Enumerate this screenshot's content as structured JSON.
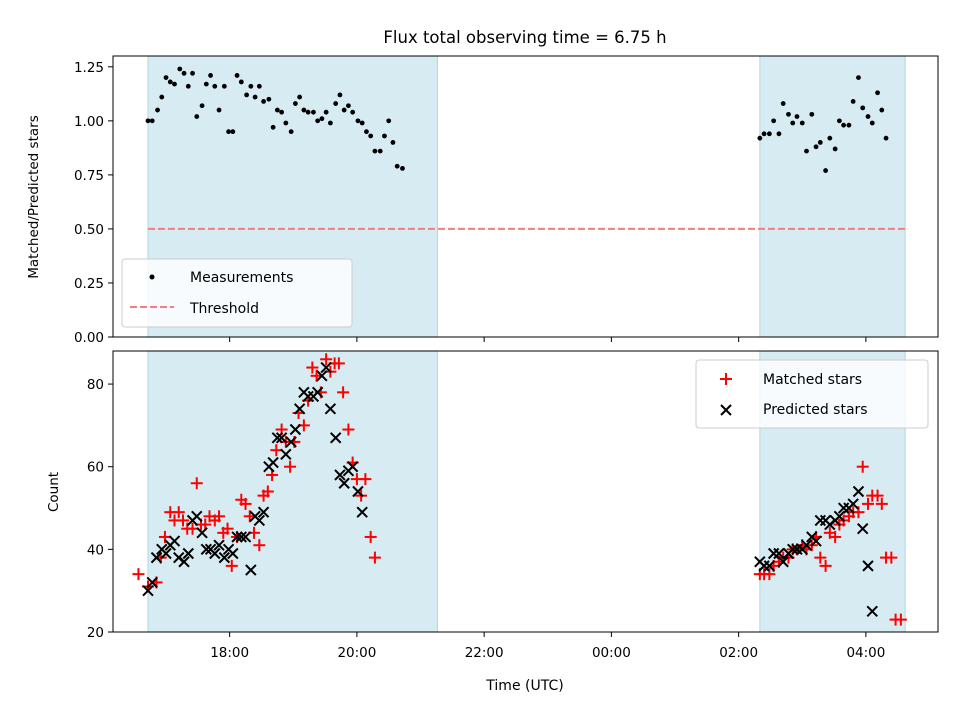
{
  "title": "Flux total observing time = 6.75 h",
  "colors": {
    "shade": "#add8e6",
    "measurements": "#000000",
    "threshold": "#f08080",
    "matched": "#ff0000",
    "predicted": "#000000"
  },
  "chart_data": [
    {
      "type": "scatter",
      "ylabel": "Matched/Predicted stars",
      "ylim": [
        0,
        1.3
      ],
      "yticks": [
        0.0,
        0.25,
        0.5,
        0.75,
        1.0,
        1.25
      ],
      "ytick_labels": [
        "0.00",
        "0.25",
        "0.50",
        "0.75",
        "1.00",
        "1.25"
      ],
      "legend": {
        "position": "lower-left",
        "entries": [
          "Measurements",
          "Threshold"
        ]
      },
      "shaded_spans": [
        [
          "16:43",
          "21:16"
        ],
        [
          "02:20",
          "04:37"
        ]
      ],
      "threshold": {
        "y": 0.5,
        "x": [
          "16:43",
          "04:37"
        ]
      },
      "series": [
        {
          "name": "Measurements",
          "x": [
            "16:43",
            "16:47",
            "16:52",
            "16:56",
            "17:00",
            "17:04",
            "17:08",
            "17:13",
            "17:17",
            "17:21",
            "17:25",
            "17:29",
            "17:34",
            "17:38",
            "17:42",
            "17:46",
            "17:50",
            "17:55",
            "17:59",
            "18:03",
            "18:07",
            "18:11",
            "18:16",
            "18:20",
            "18:24",
            "18:28",
            "18:32",
            "18:37",
            "18:41",
            "18:45",
            "18:49",
            "18:53",
            "18:58",
            "19:02",
            "19:06",
            "19:10",
            "19:14",
            "19:19",
            "19:23",
            "19:27",
            "19:31",
            "19:35",
            "19:40",
            "19:44",
            "19:48",
            "19:52",
            "19:56",
            "20:01",
            "20:05",
            "20:09",
            "20:13",
            "20:17",
            "20:22",
            "20:26",
            "20:30",
            "20:34",
            "20:38",
            "20:43",
            "20:47",
            "20:51",
            "20:55",
            "20:59",
            "21:04",
            "21:08",
            "21:12",
            "02:20",
            "02:24",
            "02:29",
            "02:33",
            "02:38",
            "02:42",
            "02:47",
            "02:51",
            "02:55",
            "03:00",
            "03:04",
            "03:09",
            "03:13",
            "03:17",
            "03:22",
            "03:26",
            "03:31",
            "03:35",
            "03:39",
            "03:44",
            "03:48",
            "03:53",
            "03:57",
            "04:02",
            "04:06",
            "04:11",
            "04:15",
            "04:19",
            "04:24",
            "04:28",
            "04:33",
            "04:37"
          ],
          "y": [
            1.0,
            1.0,
            1.05,
            1.11,
            1.2,
            1.18,
            1.17,
            1.24,
            1.22,
            1.16,
            1.22,
            1.02,
            1.07,
            1.17,
            1.21,
            1.16,
            1.05,
            1.16,
            0.95,
            0.95,
            1.21,
            1.18,
            1.12,
            1.16,
            1.11,
            1.16,
            1.09,
            1.1,
            0.97,
            1.05,
            1.04,
            0.99,
            0.95,
            1.08,
            1.11,
            1.05,
            1.04,
            1.04,
            1.0,
            1.01,
            1.04,
            0.99,
            1.08,
            1.12,
            1.05,
            1.07,
            1.04,
            1.0,
            0.99,
            0.95,
            0.93,
            0.86,
            0.86,
            0.93,
            1.0,
            0.9,
            0.79,
            0.78,
            null,
            null,
            null,
            null,
            null,
            null,
            null,
            0.92,
            0.94,
            0.94,
            1.0,
            0.94,
            1.08,
            1.03,
            0.99,
            1.02,
            0.99,
            0.86,
            1.03,
            0.88,
            0.9,
            0.77,
            0.92,
            0.87,
            1.0,
            0.98,
            0.98,
            1.09,
            1.2,
            1.06,
            1.02,
            0.99,
            1.13,
            1.05,
            0.92,
            null,
            null,
            null,
            null
          ]
        }
      ]
    },
    {
      "type": "scatter",
      "xlabel": "Time (UTC)",
      "ylabel": "Count",
      "ylim": [
        20,
        88
      ],
      "yticks": [
        20,
        40,
        60,
        80
      ],
      "xlim": [
        "16:10",
        "05:08"
      ],
      "xticks": [
        "18:00",
        "20:00",
        "22:00",
        "00:00",
        "02:00",
        "04:00"
      ],
      "legend": {
        "position": "top-right",
        "entries": [
          "Matched stars",
          "Predicted stars"
        ]
      },
      "shaded_spans": [
        [
          "16:43",
          "21:16"
        ],
        [
          "02:20",
          "04:37"
        ]
      ],
      "series": [
        {
          "name": "Matched stars",
          "x": [
            "16:34",
            "16:43",
            "16:51",
            "16:55",
            "16:59",
            "17:04",
            "17:08",
            "17:12",
            "17:16",
            "17:20",
            "17:25",
            "17:29",
            "17:33",
            "17:37",
            "17:41",
            "17:46",
            "17:50",
            "17:54",
            "17:58",
            "18:02",
            "18:07",
            "18:11",
            "18:15",
            "18:19",
            "18:23",
            "18:28",
            "18:32",
            "18:36",
            "18:40",
            "18:44",
            "18:49",
            "18:53",
            "18:57",
            "19:01",
            "19:05",
            "19:10",
            "19:14",
            "19:18",
            "19:22",
            "19:26",
            "19:31",
            "19:35",
            "19:39",
            "19:43",
            "19:47",
            "19:52",
            "19:56",
            "20:00",
            "20:04",
            "20:08",
            "20:13",
            "20:17",
            "20:21",
            "20:25",
            "20:29",
            "20:34",
            "20:38",
            "20:42",
            "20:46",
            "20:50",
            "20:55",
            "20:59",
            "21:03",
            "21:07",
            "21:12",
            "02:20",
            "02:24",
            "02:29",
            "02:33",
            "02:38",
            "02:42",
            "02:47",
            "02:51",
            "02:55",
            "03:00",
            "03:04",
            "03:09",
            "03:13",
            "03:17",
            "03:22",
            "03:26",
            "03:31",
            "03:35",
            "03:39",
            "03:44",
            "03:48",
            "03:53",
            "03:57",
            "04:02",
            "04:06",
            "04:11",
            "04:15",
            "04:19",
            "04:24",
            "04:28",
            "04:33",
            "04:37"
          ],
          "y": [
            34,
            31,
            32,
            38,
            43,
            49,
            47,
            49,
            47,
            45,
            45,
            56,
            46,
            46,
            48,
            47,
            48,
            44,
            45,
            36,
            43,
            52,
            51,
            48,
            44,
            41,
            53,
            54,
            58,
            64,
            69,
            66,
            60,
            66,
            73,
            70,
            76,
            84,
            82,
            78,
            86,
            83,
            85,
            85,
            78,
            69,
            61,
            57,
            53,
            57,
            43,
            38,
            null,
            null,
            null,
            null,
            null,
            null,
            null,
            null,
            null,
            null,
            null,
            null,
            null,
            34,
            34,
            34,
            36,
            37,
            38,
            38,
            40,
            40,
            41,
            40,
            41,
            43,
            38,
            36,
            44,
            43,
            46,
            47,
            48,
            49,
            49,
            60,
            51,
            53,
            53,
            51,
            38,
            38,
            23,
            23,
            null
          ]
        },
        {
          "name": "Predicted stars",
          "x": [
            "16:43",
            "16:47",
            "16:51",
            "16:56",
            "17:00",
            "17:04",
            "17:08",
            "17:12",
            "17:17",
            "17:21",
            "17:25",
            "17:29",
            "17:34",
            "17:38",
            "17:42",
            "17:46",
            "17:50",
            "17:55",
            "17:59",
            "18:03",
            "18:07",
            "18:11",
            "18:15",
            "18:20",
            "18:24",
            "18:28",
            "18:32",
            "18:37",
            "18:41",
            "18:45",
            "18:49",
            "18:53",
            "18:58",
            "19:02",
            "19:06",
            "19:10",
            "19:14",
            "19:19",
            "19:23",
            "19:27",
            "19:31",
            "19:35",
            "19:40",
            "19:44",
            "19:48",
            "19:52",
            "19:56",
            "20:01",
            "20:05",
            "20:09",
            "20:13",
            "20:17",
            "20:22",
            "20:26",
            "20:30",
            "20:34",
            "20:38",
            "20:42",
            "20:47",
            "20:51",
            "20:55",
            "20:59",
            "21:04",
            "21:08",
            "21:12",
            "02:20",
            "02:24",
            "02:29",
            "02:33",
            "02:38",
            "02:42",
            "02:47",
            "02:51",
            "02:55",
            "03:00",
            "03:04",
            "03:09",
            "03:13",
            "03:17",
            "03:22",
            "03:26",
            "03:31",
            "03:35",
            "03:39",
            "03:44",
            "03:48",
            "03:53",
            "03:57",
            "04:02",
            "04:06",
            "04:11",
            "04:15",
            "04:19",
            "04:24",
            "04:28",
            "04:33",
            "04:37"
          ],
          "y": [
            30,
            32,
            38,
            40,
            39,
            41,
            42,
            38,
            37,
            39,
            47,
            48,
            44,
            40,
            40,
            39,
            41,
            38,
            40,
            39,
            43,
            43,
            43,
            35,
            48,
            47,
            49,
            60,
            61,
            67,
            67,
            63,
            66,
            69,
            74,
            78,
            77,
            77,
            78,
            82,
            84,
            74,
            67,
            58,
            56,
            59,
            60,
            54,
            49,
            null,
            null,
            null,
            null,
            null,
            null,
            null,
            null,
            null,
            null,
            null,
            null,
            null,
            null,
            null,
            null,
            37,
            36,
            36,
            39,
            39,
            37,
            39,
            40,
            40,
            40,
            41,
            43,
            42,
            47,
            47,
            46,
            47,
            48,
            50,
            50,
            51,
            54,
            45,
            36,
            25,
            null,
            null,
            null,
            null,
            null,
            null,
            null
          ]
        }
      ]
    }
  ]
}
